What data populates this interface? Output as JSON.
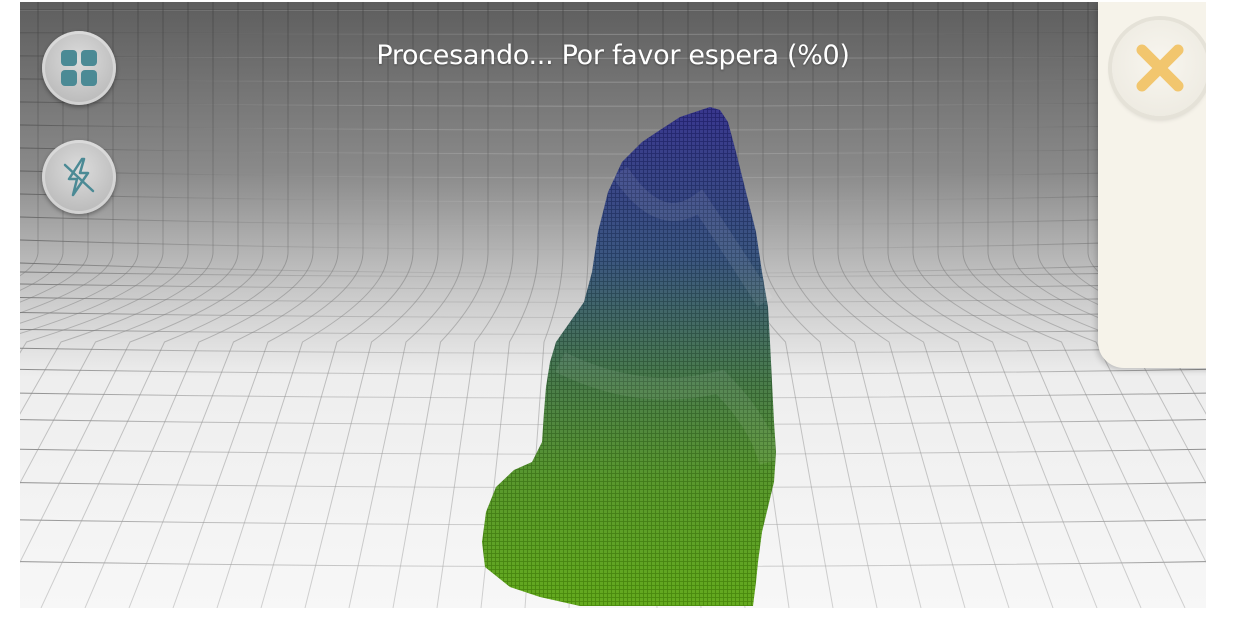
{
  "status": {
    "message": "Procesando... Por favor espera (%0)",
    "progress_percent": 0
  },
  "toolbar": {
    "grid_button_icon": "grid-icon",
    "flash_button_icon": "flash-off-icon"
  },
  "side_panel": {
    "close_button_icon": "close-icon"
  },
  "colors": {
    "model_top": "#2e2f8a",
    "model_mid": "#3a6a5c",
    "model_bottom": "#5aa010",
    "close_accent": "#f2c66e",
    "panel_bg": "#f6f3ea",
    "icon_teal": "#4b8a95"
  }
}
